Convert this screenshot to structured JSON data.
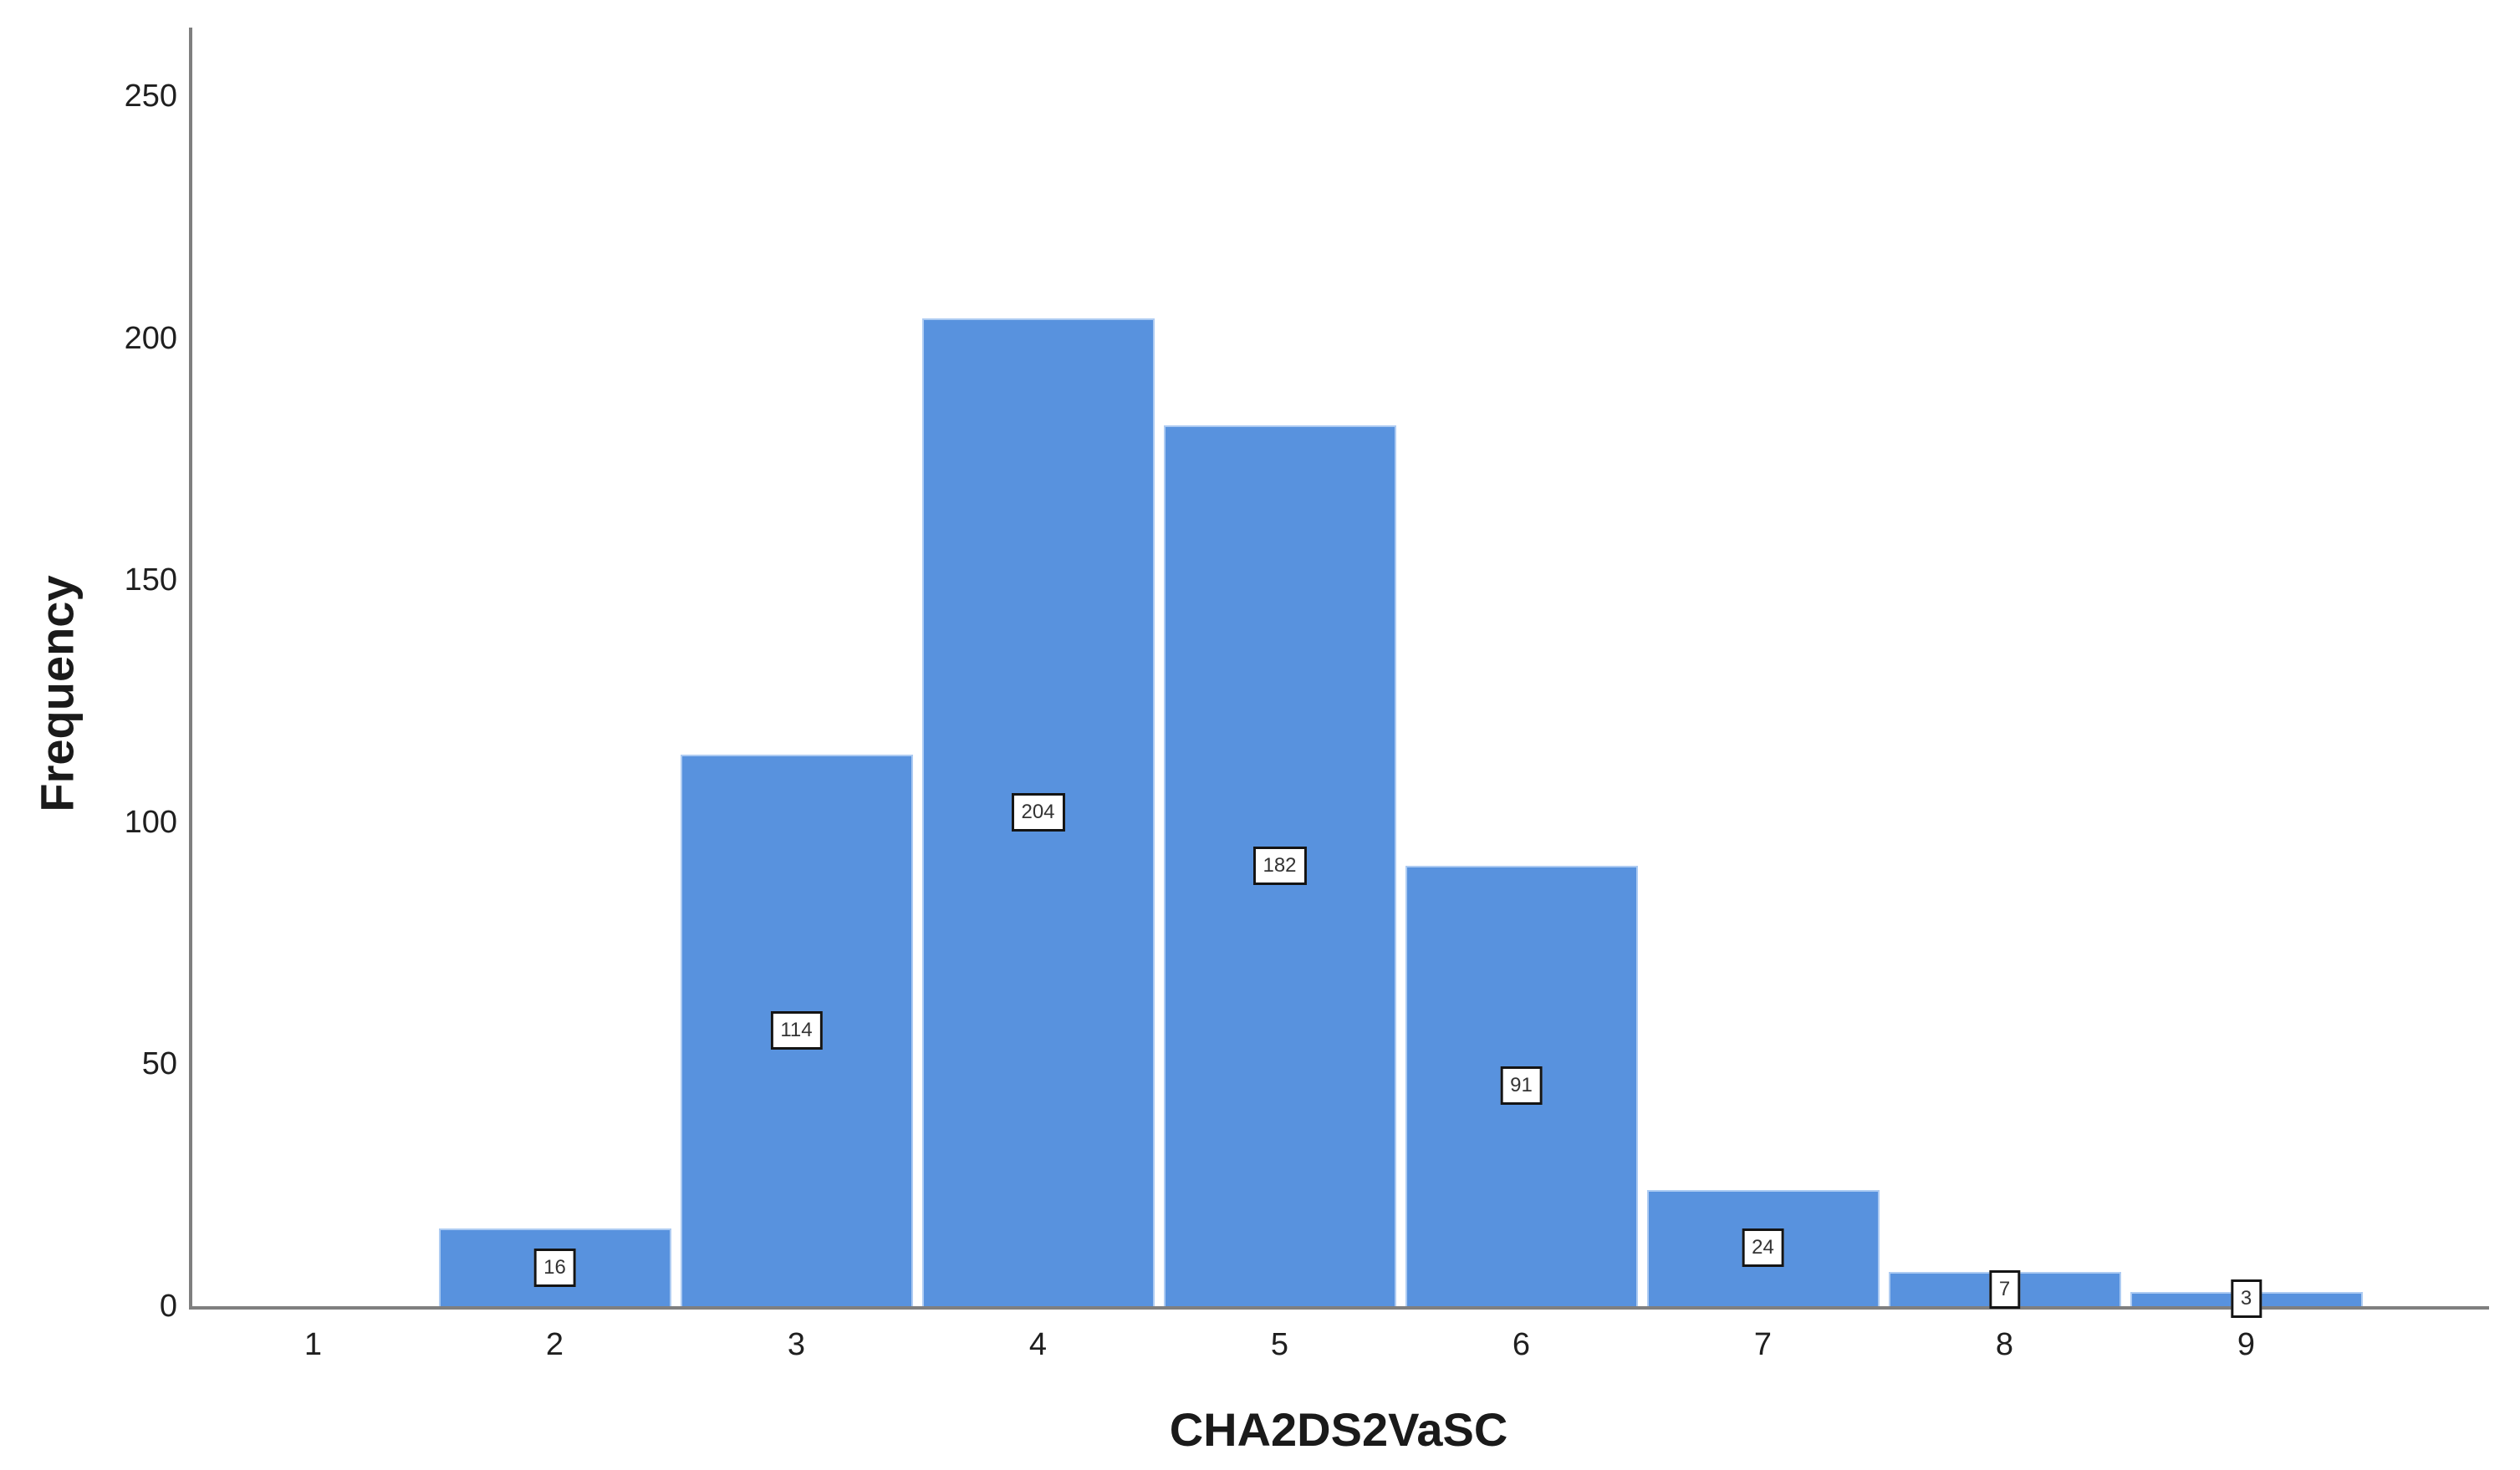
{
  "chart_data": {
    "type": "bar",
    "title": "",
    "xlabel": "CHA2DS2VaSC",
    "ylabel": "Frequency",
    "categories": [
      "1",
      "2",
      "3",
      "4",
      "5",
      "6",
      "7",
      "8",
      "9"
    ],
    "values": [
      0,
      16,
      114,
      204,
      182,
      91,
      24,
      7,
      3
    ],
    "value_labels_shown": [
      "",
      "16",
      "114",
      "204",
      "182",
      "91",
      "24",
      "7",
      "3"
    ],
    "y_ticks": [
      0,
      50,
      100,
      150,
      200,
      250
    ],
    "ylim": [
      0,
      264
    ],
    "grid": "off",
    "legend": "none",
    "colors": {
      "bar_fill": "#5892DE",
      "bar_edge": "#ADCBF2",
      "axis_line": "#7F7F7F",
      "label_box_bg": "#FFFFFF",
      "label_box_border": "#141414",
      "text": "#1F1F1F"
    }
  }
}
